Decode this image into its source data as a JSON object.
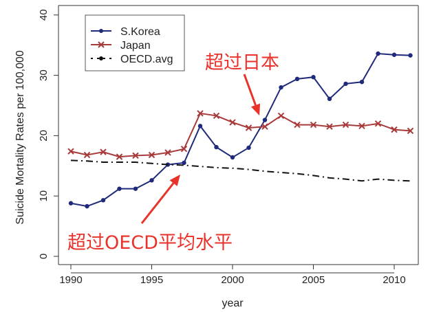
{
  "chart_data": {
    "type": "line",
    "title": "",
    "xlabel": "year",
    "ylabel": "Suicide Mortality Rates per 100,000",
    "xlim": [
      1989.3,
      2012.3
    ],
    "ylim": [
      -1,
      40.5
    ],
    "xticks": [
      1990,
      1995,
      2000,
      2005,
      2010
    ],
    "yticks": [
      0,
      10,
      20,
      30,
      40
    ],
    "grid": false,
    "legend_position": "top-left",
    "x": [
      1990,
      1991,
      1992,
      1993,
      1994,
      1995,
      1996,
      1997,
      1998,
      1999,
      2000,
      2001,
      2002,
      2003,
      2004,
      2005,
      2006,
      2007,
      2008,
      2009,
      2010,
      2011
    ],
    "series": [
      {
        "name": "S.Korea",
        "color": "#1f2a7a",
        "marker": "dot",
        "style": "solid",
        "values": [
          8.8,
          8.3,
          9.3,
          11.2,
          11.2,
          12.6,
          15.2,
          15.5,
          21.6,
          18.1,
          16.4,
          18.0,
          22.6,
          28.0,
          29.4,
          29.7,
          26.1,
          28.6,
          28.9,
          33.6,
          33.4,
          33.3
        ]
      },
      {
        "name": "Japan",
        "color": "#a83a3a",
        "marker": "cross",
        "style": "solid",
        "values": [
          17.4,
          16.8,
          17.3,
          16.5,
          16.7,
          16.8,
          17.2,
          17.8,
          23.7,
          23.3,
          22.2,
          21.3,
          21.5,
          23.3,
          21.8,
          21.8,
          21.5,
          21.8,
          21.6,
          22.0,
          21.0,
          20.8
        ]
      },
      {
        "name": "OECD.avg",
        "color": "#111111",
        "marker": "none",
        "style": "dashdot",
        "values": [
          15.9,
          15.8,
          15.6,
          15.6,
          15.6,
          15.4,
          15.2,
          15.1,
          14.9,
          14.7,
          14.6,
          14.4,
          14.1,
          13.9,
          13.7,
          13.4,
          13.0,
          12.8,
          12.5,
          12.8,
          12.6,
          12.5
        ]
      }
    ],
    "annotations": [
      {
        "text": "超过日本",
        "points_to_year": 2002,
        "color": "#e8322a"
      },
      {
        "text": "超过OECD平均水平",
        "points_to_year": 1997,
        "color": "#e8322a"
      }
    ]
  }
}
